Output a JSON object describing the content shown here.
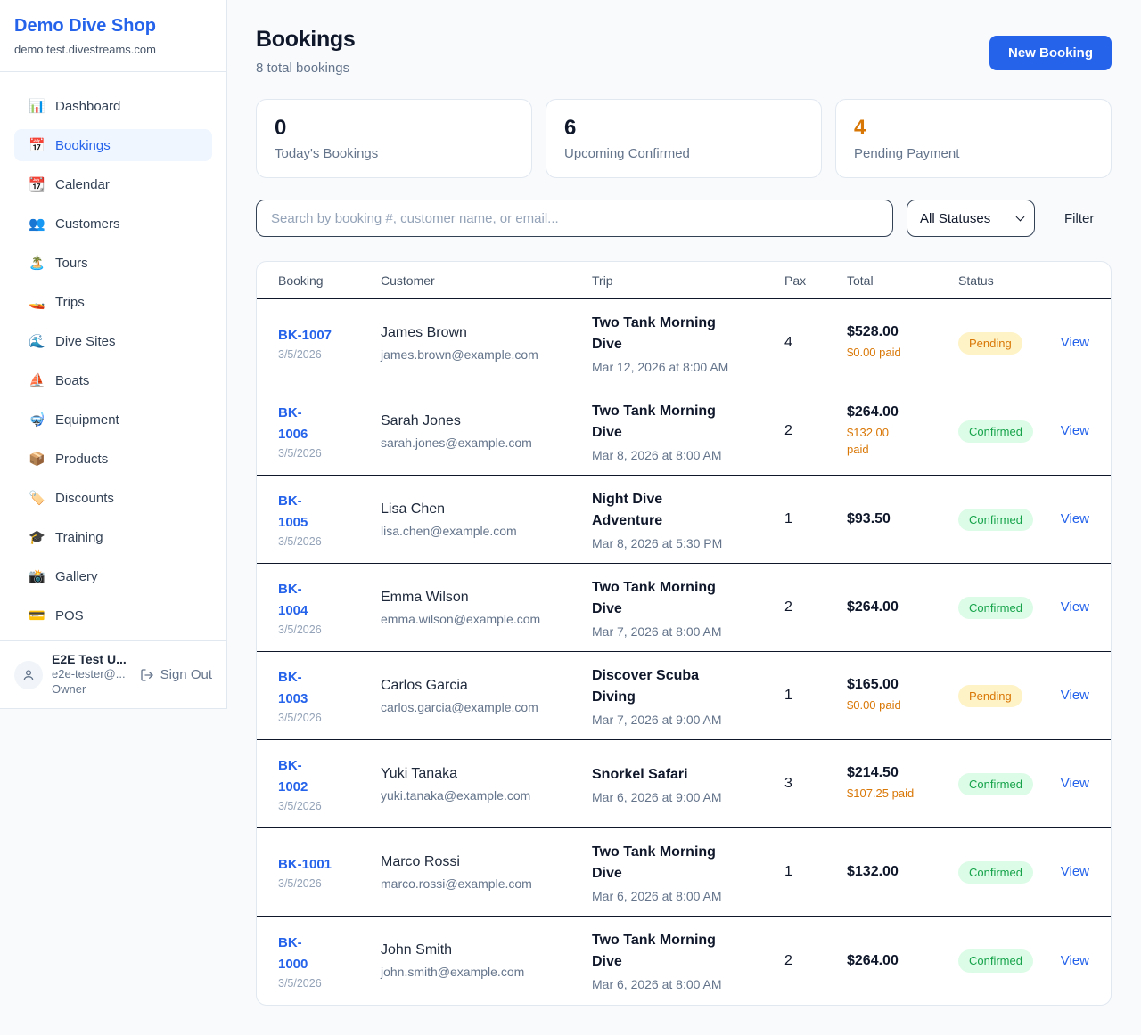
{
  "sidebar": {
    "brand": {
      "name": "Demo Dive Shop",
      "domain": "demo.test.divestreams.com"
    },
    "nav": [
      {
        "label": "Dashboard",
        "icon_name": "bar-chart-icon",
        "glyph": "📊",
        "active": false
      },
      {
        "label": "Bookings",
        "icon_name": "calendar-icon",
        "glyph": "📅",
        "active": true
      },
      {
        "label": "Calendar",
        "icon_name": "tear-off-calendar-icon",
        "glyph": "📆",
        "active": false
      },
      {
        "label": "Customers",
        "icon_name": "users-icon",
        "glyph": "👥",
        "active": false
      },
      {
        "label": "Tours",
        "icon_name": "island-icon",
        "glyph": "🏝️",
        "active": false
      },
      {
        "label": "Trips",
        "icon_name": "speedboat-icon",
        "glyph": "🚤",
        "active": false
      },
      {
        "label": "Dive Sites",
        "icon_name": "wave-icon",
        "glyph": "🌊",
        "active": false
      },
      {
        "label": "Boats",
        "icon_name": "sailboat-icon",
        "glyph": "⛵",
        "active": false
      },
      {
        "label": "Equipment",
        "icon_name": "diving-mask-icon",
        "glyph": "🤿",
        "active": false
      },
      {
        "label": "Products",
        "icon_name": "package-icon",
        "glyph": "📦",
        "active": false
      },
      {
        "label": "Discounts",
        "icon_name": "tag-icon",
        "glyph": "🏷️",
        "active": false
      },
      {
        "label": "Training",
        "icon_name": "graduation-cap-icon",
        "glyph": "🎓",
        "active": false
      },
      {
        "label": "Gallery",
        "icon_name": "camera-icon",
        "glyph": "📸",
        "active": false
      },
      {
        "label": "POS",
        "icon_name": "credit-card-icon",
        "glyph": "💳",
        "active": false
      }
    ],
    "user": {
      "name": "E2E Test U...",
      "email": "e2e-tester@...",
      "role": "Owner",
      "sign_out_label": "Sign Out"
    }
  },
  "header": {
    "title": "Bookings",
    "subtitle": "8 total bookings",
    "new_booking_label": "New Booking"
  },
  "stats": [
    {
      "value": "0",
      "label": "Today's Bookings",
      "value_color": "#0f172a"
    },
    {
      "value": "6",
      "label": "Upcoming Confirmed",
      "value_color": "#0f172a"
    },
    {
      "value": "4",
      "label": "Pending Payment",
      "value_color": "#d97706"
    }
  ],
  "filters": {
    "search_placeholder": "Search by booking #, customer name, or email...",
    "status_selected": "All Statuses",
    "filter_label": "Filter"
  },
  "table": {
    "headers": [
      "Booking",
      "Customer",
      "Trip",
      "Pax",
      "Total",
      "Status"
    ],
    "view_label": "View",
    "rows": [
      {
        "id": "BK-1007",
        "id_two_line": false,
        "date": "3/5/2026",
        "customer": "James Brown",
        "email": "james.brown@example.com",
        "trip": "Two Tank Morning Dive",
        "trip_datetime": "Mar 12, 2026 at 8:00 AM",
        "pax": "4",
        "total": "$528.00",
        "paid": "$0.00 paid",
        "paid_two_line": false,
        "status": "Pending"
      },
      {
        "id": "BK-1006",
        "id_two_line": true,
        "date": "3/5/2026",
        "customer": "Sarah Jones",
        "email": "sarah.jones@example.com",
        "trip": "Two Tank Morning Dive",
        "trip_datetime": "Mar 8, 2026 at 8:00 AM",
        "pax": "2",
        "total": "$264.00",
        "paid": "$132.00 paid",
        "paid_two_line": true,
        "status": "Confirmed"
      },
      {
        "id": "BK-1005",
        "id_two_line": true,
        "date": "3/5/2026",
        "customer": "Lisa Chen",
        "email": "lisa.chen@example.com",
        "trip": "Night Dive Adventure",
        "trip_datetime": "Mar 8, 2026 at 5:30 PM",
        "pax": "1",
        "total": "$93.50",
        "paid": "",
        "paid_two_line": false,
        "status": "Confirmed"
      },
      {
        "id": "BK-1004",
        "id_two_line": true,
        "date": "3/5/2026",
        "customer": "Emma Wilson",
        "email": "emma.wilson@example.com",
        "trip": "Two Tank Morning Dive",
        "trip_datetime": "Mar 7, 2026 at 8:00 AM",
        "pax": "2",
        "total": "$264.00",
        "paid": "",
        "paid_two_line": false,
        "status": "Confirmed"
      },
      {
        "id": "BK-1003",
        "id_two_line": true,
        "date": "3/5/2026",
        "customer": "Carlos Garcia",
        "email": "carlos.garcia@example.com",
        "trip": "Discover Scuba Diving",
        "trip_datetime": "Mar 7, 2026 at 9:00 AM",
        "pax": "1",
        "total": "$165.00",
        "paid": "$0.00 paid",
        "paid_two_line": false,
        "status": "Pending"
      },
      {
        "id": "BK-1002",
        "id_two_line": true,
        "date": "3/5/2026",
        "customer": "Yuki Tanaka",
        "email": "yuki.tanaka@example.com",
        "trip": "Snorkel Safari",
        "trip_datetime": "Mar 6, 2026 at 9:00 AM",
        "pax": "3",
        "total": "$214.50",
        "paid": "$107.25 paid",
        "paid_two_line": false,
        "status": "Confirmed"
      },
      {
        "id": "BK-1001",
        "id_two_line": false,
        "date": "3/5/2026",
        "customer": "Marco Rossi",
        "email": "marco.rossi@example.com",
        "trip": "Two Tank Morning Dive",
        "trip_datetime": "Mar 6, 2026 at 8:00 AM",
        "pax": "1",
        "total": "$132.00",
        "paid": "",
        "paid_two_line": false,
        "status": "Confirmed"
      },
      {
        "id": "BK-1000",
        "id_two_line": true,
        "date": "3/5/2026",
        "customer": "John Smith",
        "email": "john.smith@example.com",
        "trip": "Two Tank Morning Dive",
        "trip_datetime": "Mar 6, 2026 at 8:00 AM",
        "pax": "2",
        "total": "$264.00",
        "paid": "",
        "paid_two_line": false,
        "status": "Confirmed"
      }
    ]
  },
  "colors": {
    "accent": "#2563eb",
    "pending_text": "#d97706",
    "pending_bg": "#fef3c7",
    "confirmed_text": "#16a34a",
    "confirmed_bg": "#dcfce7",
    "page_bg": "#f8fafc",
    "row_divider": "#0f172a"
  }
}
